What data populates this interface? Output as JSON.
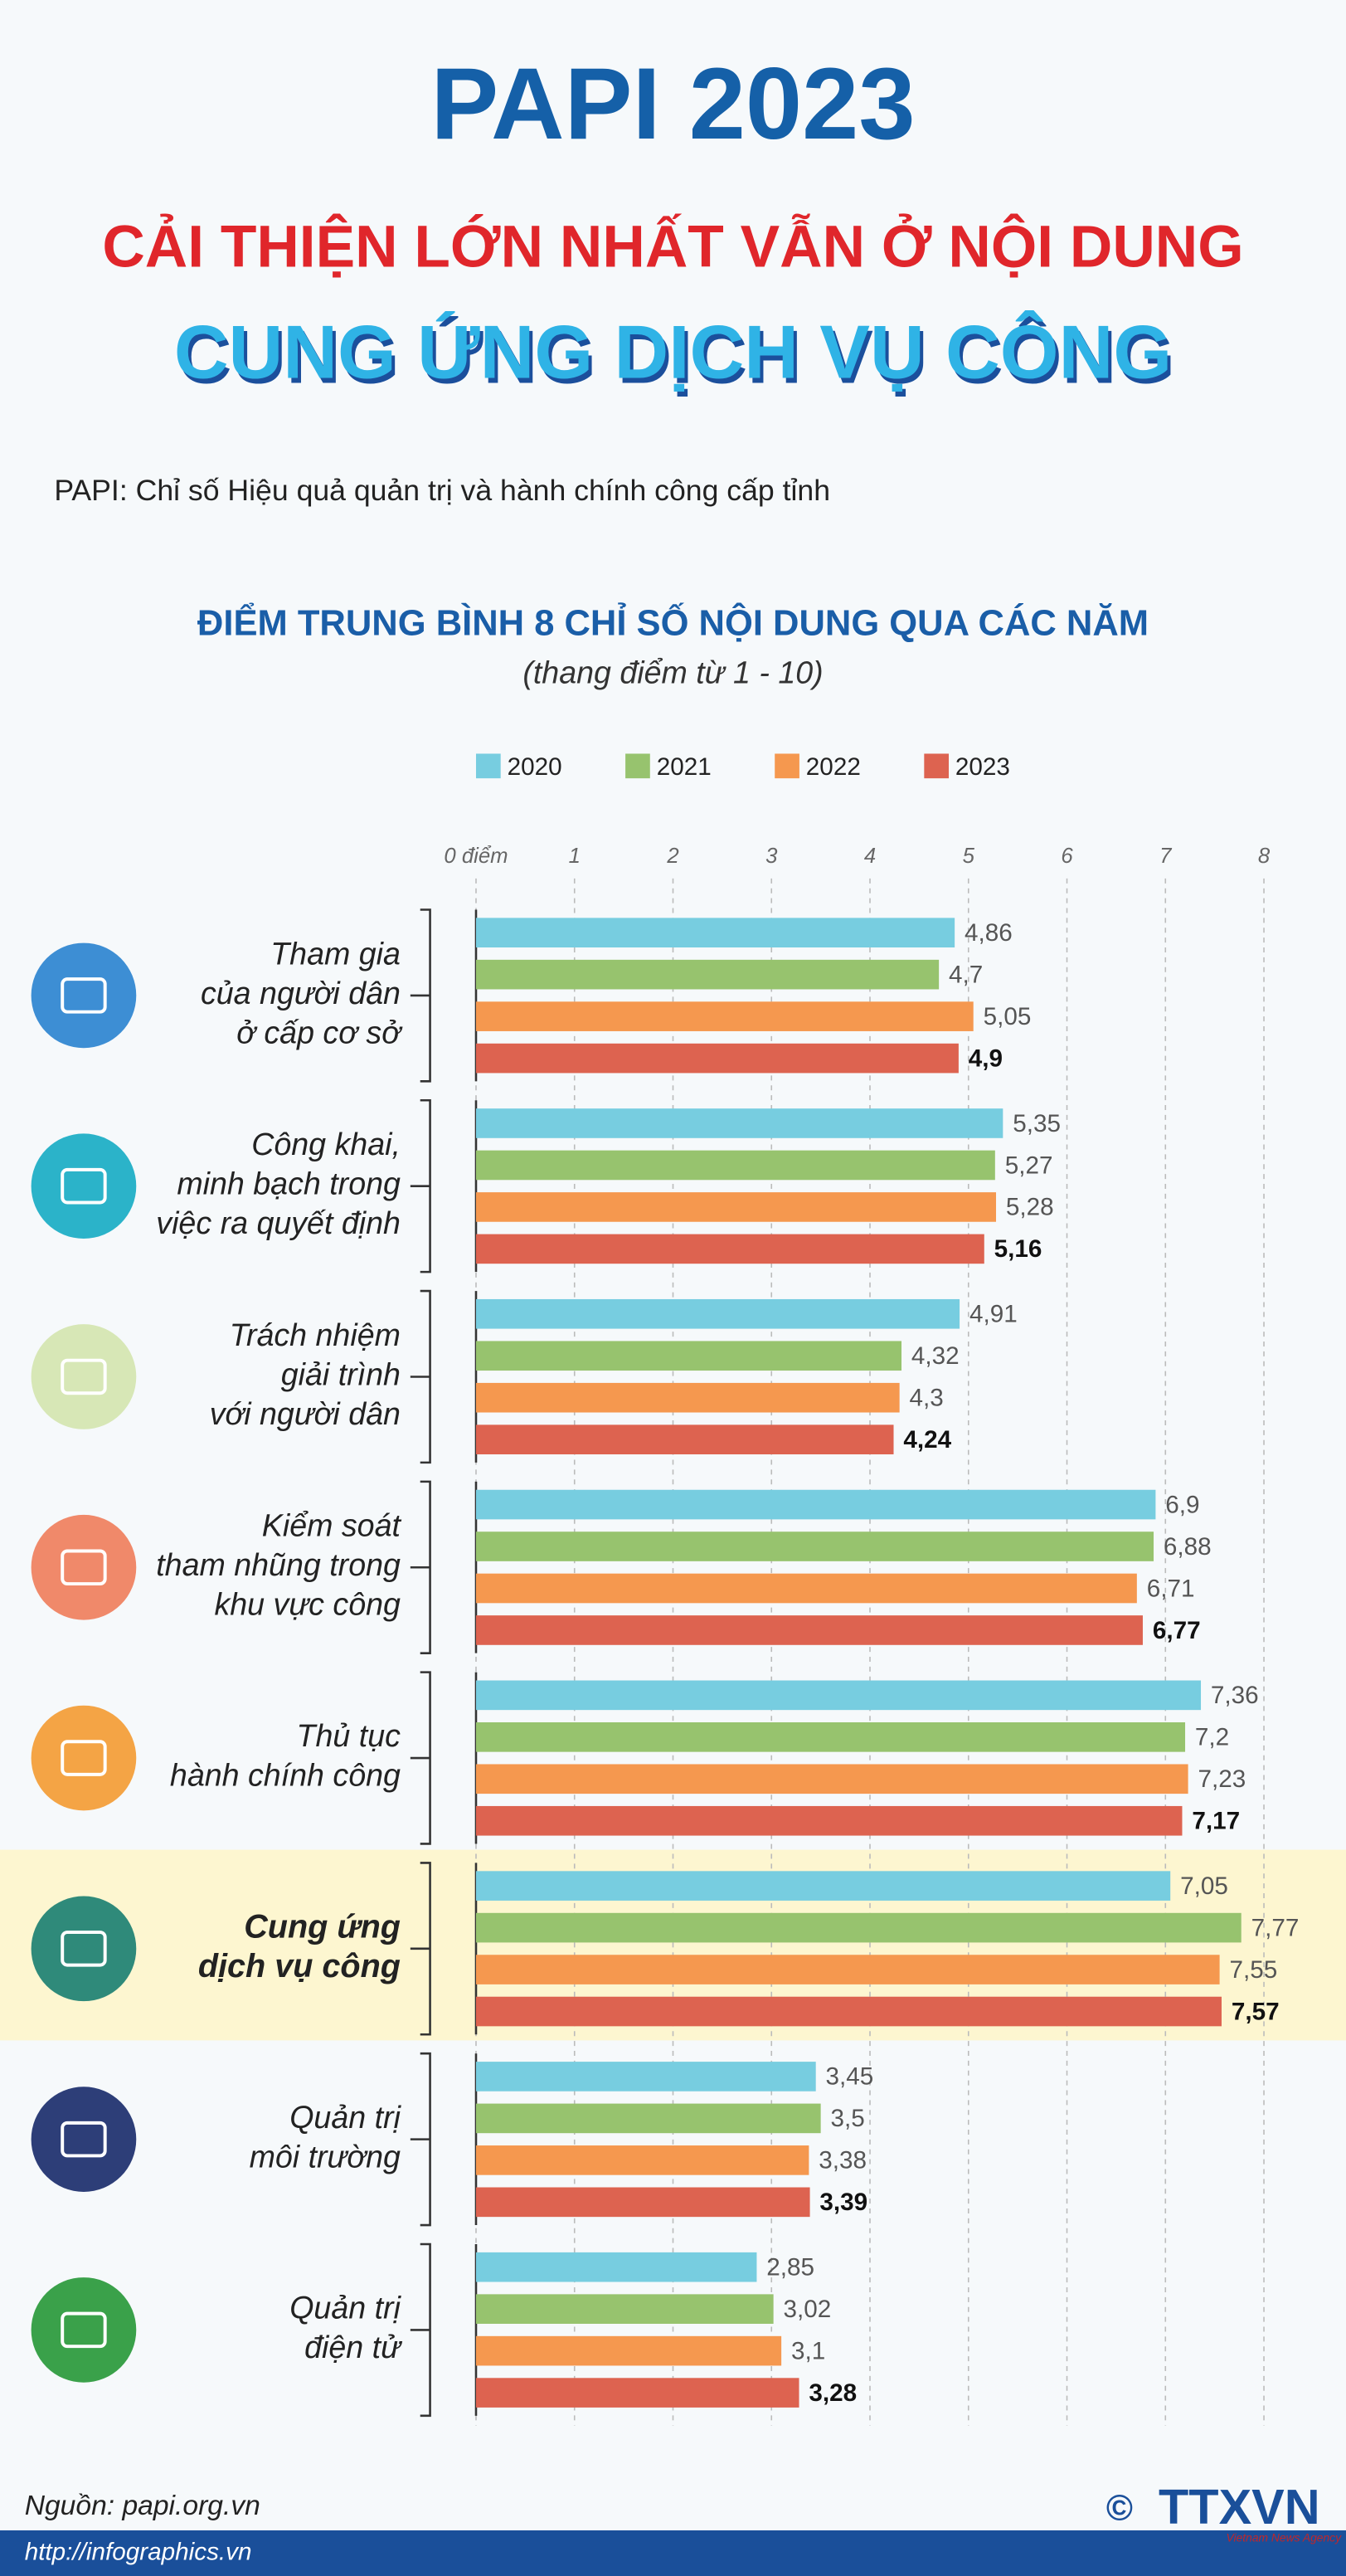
{
  "header": {
    "title": "PAPI 2023",
    "subtitle_line1": "CẢI THIỆN LỚN NHẤT VẪN Ở NỘI DUNG",
    "subtitle_line2": "CUNG ỨNG DỊCH VỤ CÔNG",
    "note": "PAPI: Chỉ số Hiệu quả quản trị và hành chính công cấp tỉnh"
  },
  "chart_data": {
    "type": "bar",
    "orientation": "horizontal",
    "title": "ĐIỂM TRUNG BÌNH 8 CHỈ SỐ NỘI DUNG QUA CÁC NĂM",
    "subtitle": "(thang điểm từ 1 - 10)",
    "categories": [
      [
        "Tham gia",
        "của người dân",
        "ở cấp cơ sở"
      ],
      [
        "Công khai,",
        "minh bạch trong",
        "việc ra quyết định"
      ],
      [
        "Trách nhiệm",
        "giải trình",
        "với người dân"
      ],
      [
        "Kiểm soát",
        "tham nhũng trong",
        "khu vực công"
      ],
      [
        "Thủ tục",
        "hành chính công"
      ],
      [
        "Cung ứng",
        "dịch vụ công"
      ],
      [
        "Quản trị",
        "môi trường"
      ],
      [
        "Quản trị",
        "điện tử"
      ]
    ],
    "highlight": 5,
    "series": [
      {
        "name": "2020",
        "color": "#77cde0",
        "values": [
          4.86,
          5.35,
          4.91,
          6.9,
          7.36,
          7.05,
          3.45,
          2.85
        ],
        "value_labels": [
          "4,86",
          "5,35",
          "4,91",
          "6,9",
          "7,36",
          "7,05",
          "3,45",
          "2,85"
        ]
      },
      {
        "name": "2021",
        "color": "#97c36e",
        "values": [
          4.7,
          5.27,
          4.32,
          6.88,
          7.2,
          7.77,
          3.5,
          3.02
        ],
        "value_labels": [
          "4,7",
          "5,27",
          "4,32",
          "6,88",
          "7,2",
          "7,77",
          "3,5",
          "3,02"
        ]
      },
      {
        "name": "2022",
        "color": "#f5984f",
        "values": [
          5.05,
          5.28,
          4.3,
          6.71,
          7.23,
          7.55,
          3.38,
          3.1
        ],
        "value_labels": [
          "5,05",
          "5,28",
          "4,3",
          "6,71",
          "7,23",
          "7,55",
          "3,38",
          "3,1"
        ]
      },
      {
        "name": "2023",
        "color": "#dd6350",
        "values": [
          4.9,
          5.16,
          4.24,
          6.77,
          7.17,
          7.57,
          3.39,
          3.28
        ],
        "value_labels": [
          "4,9",
          "5,16",
          "4,24",
          "6,77",
          "7,17",
          "7,57",
          "3,39",
          "3,28"
        ]
      }
    ],
    "xlim": [
      0,
      8
    ],
    "xticks": [
      {
        "value": 0,
        "label": "0 điểm"
      },
      1,
      2,
      3,
      4,
      5,
      6,
      7,
      8
    ],
    "grid": true,
    "legend": "top"
  },
  "footer": {
    "source": "Nguồn: papi.org.vn",
    "url": "http://infographics.vn",
    "copyright": "©",
    "logo": "TTXVN",
    "logo_sub": "Vietnam News Agency"
  }
}
